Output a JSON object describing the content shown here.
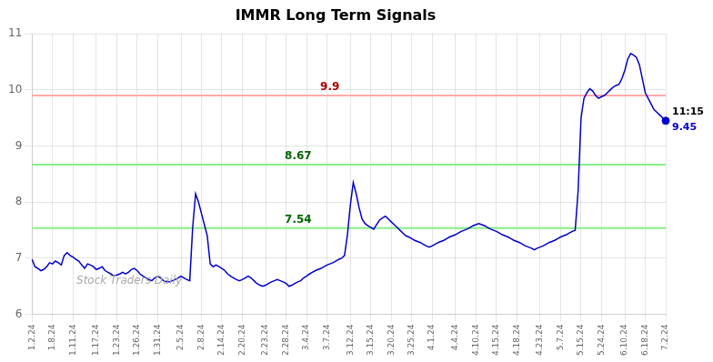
{
  "chart_data": {
    "type": "line",
    "title": "IMMR Long Term Signals",
    "categories": [
      "1.2.24",
      null,
      null,
      null,
      null,
      null,
      null,
      "1.8.24",
      null,
      null,
      null,
      null,
      null,
      null,
      "1.11.24",
      null,
      null,
      null,
      null,
      null,
      null,
      null,
      "1.17.24",
      null,
      null,
      null,
      null,
      null,
      null,
      "1.23.24",
      null,
      null,
      null,
      null,
      null,
      null,
      "1.26.24",
      null,
      null,
      null,
      null,
      null,
      null,
      "1.31.24",
      null,
      null,
      null,
      null,
      null,
      null,
      null,
      "2.5.24",
      null,
      null,
      null,
      null,
      null,
      null,
      "2.8.24",
      null,
      null,
      null,
      null,
      null,
      null,
      "2.14.24",
      null,
      null,
      null,
      null,
      null,
      null,
      "2.20.24",
      null,
      null,
      null,
      null,
      null,
      null,
      null,
      "2.23.24",
      null,
      null,
      null,
      null,
      null,
      null,
      "2.28.24",
      null,
      null,
      null,
      null,
      null,
      null,
      "3.4.24",
      null,
      null,
      null,
      null,
      null,
      null,
      "3.7.24",
      null,
      null,
      null,
      null,
      null,
      null,
      null,
      "3.12.24",
      null,
      null,
      null,
      null,
      null,
      null,
      "3.15.24",
      null,
      null,
      null,
      null,
      null,
      null,
      "3.20.24",
      null,
      null,
      null,
      null,
      null,
      null,
      "3.25.24",
      null,
      null,
      null,
      null,
      null,
      null,
      "4.1.24",
      null,
      null,
      null,
      null,
      null,
      null,
      null,
      "4.4.24",
      null,
      null,
      null,
      null,
      null,
      null,
      "4.10.24",
      null,
      null,
      null,
      null,
      null,
      null,
      "4.15.24",
      null,
      null,
      null,
      null,
      null,
      null,
      "4.18.24",
      null,
      null,
      null,
      null,
      null,
      null,
      null,
      "4.23.24",
      null,
      null,
      null,
      null,
      null,
      null,
      "5.7.24",
      null,
      null,
      null,
      null,
      null,
      null,
      "5.15.24",
      null,
      null,
      null,
      null,
      null,
      null,
      "5.24.24",
      null,
      null,
      null,
      null,
      null,
      null,
      null,
      "6.10.24",
      null,
      null,
      null,
      null,
      null,
      null,
      "6.18.24",
      null,
      null,
      null,
      null,
      null,
      null,
      "7.2.24"
    ],
    "values": [
      6.98,
      6.85,
      6.82,
      6.78,
      6.8,
      6.85,
      6.92,
      6.9,
      6.95,
      6.92,
      6.88,
      7.05,
      7.1,
      7.05,
      7.02,
      6.98,
      6.95,
      6.88,
      6.82,
      6.9,
      6.88,
      6.85,
      6.8,
      6.82,
      6.85,
      6.78,
      6.75,
      6.72,
      6.68,
      6.7,
      6.72,
      6.75,
      6.72,
      6.75,
      6.8,
      6.82,
      6.78,
      6.72,
      6.68,
      6.65,
      6.62,
      6.6,
      6.65,
      6.68,
      6.65,
      6.6,
      6.58,
      6.58,
      6.6,
      6.62,
      6.65,
      6.68,
      6.65,
      6.62,
      6.6,
      7.55,
      8.15,
      8.0,
      7.8,
      7.6,
      7.4,
      6.9,
      6.85,
      6.88,
      6.85,
      6.82,
      6.78,
      6.72,
      6.68,
      6.65,
      6.62,
      6.6,
      6.62,
      6.65,
      6.68,
      6.65,
      6.6,
      6.55,
      6.52,
      6.5,
      6.52,
      6.55,
      6.58,
      6.6,
      6.62,
      6.6,
      6.58,
      6.55,
      6.5,
      6.52,
      6.55,
      6.58,
      6.6,
      6.65,
      6.68,
      6.72,
      6.75,
      6.78,
      6.8,
      6.82,
      6.85,
      6.88,
      6.9,
      6.92,
      6.95,
      6.98,
      7.0,
      7.05,
      7.42,
      7.95,
      8.35,
      8.15,
      7.9,
      7.7,
      7.62,
      7.58,
      7.55,
      7.52,
      7.6,
      7.68,
      7.72,
      7.75,
      7.7,
      7.65,
      7.6,
      7.55,
      7.5,
      7.45,
      7.4,
      7.38,
      7.35,
      7.32,
      7.3,
      7.28,
      7.25,
      7.22,
      7.2,
      7.22,
      7.25,
      7.28,
      7.3,
      7.32,
      7.35,
      7.38,
      7.4,
      7.42,
      7.45,
      7.48,
      7.5,
      7.52,
      7.55,
      7.58,
      7.6,
      7.62,
      7.6,
      7.58,
      7.55,
      7.52,
      7.5,
      7.48,
      7.45,
      7.42,
      7.4,
      7.38,
      7.35,
      7.32,
      7.3,
      7.28,
      7.25,
      7.22,
      7.2,
      7.18,
      7.15,
      7.18,
      7.2,
      7.22,
      7.25,
      7.28,
      7.3,
      7.32,
      7.35,
      7.38,
      7.4,
      7.42,
      7.45,
      7.48,
      7.5,
      8.2,
      9.5,
      9.85,
      9.95,
      10.02,
      9.98,
      9.9,
      9.85,
      9.88,
      9.9,
      9.95,
      10.0,
      10.05,
      10.08,
      10.1,
      10.2,
      10.35,
      10.55,
      10.65,
      10.62,
      10.58,
      10.45,
      10.2,
      9.95,
      9.85,
      9.75,
      9.65,
      9.6,
      9.55,
      9.5,
      9.45
    ],
    "color": "#0000cc",
    "ylim": [
      6,
      11
    ],
    "yticks": [
      6,
      7,
      8,
      9,
      10,
      11
    ],
    "grid": true,
    "hlines": [
      {
        "y": 9.9,
        "label": "9.9",
        "color": "#ffaaaa",
        "label_color": "#aa0000"
      },
      {
        "y": 8.67,
        "label": "8.67",
        "color": "#88ee88",
        "label_color": "#006600"
      },
      {
        "y": 7.54,
        "label": "7.54",
        "color": "#88ee88",
        "label_color": "#006600"
      }
    ],
    "last_point": {
      "y": 9.45,
      "time_label": "11:15",
      "value_label": "9.45"
    },
    "watermark": "Stock Traders Daily"
  }
}
